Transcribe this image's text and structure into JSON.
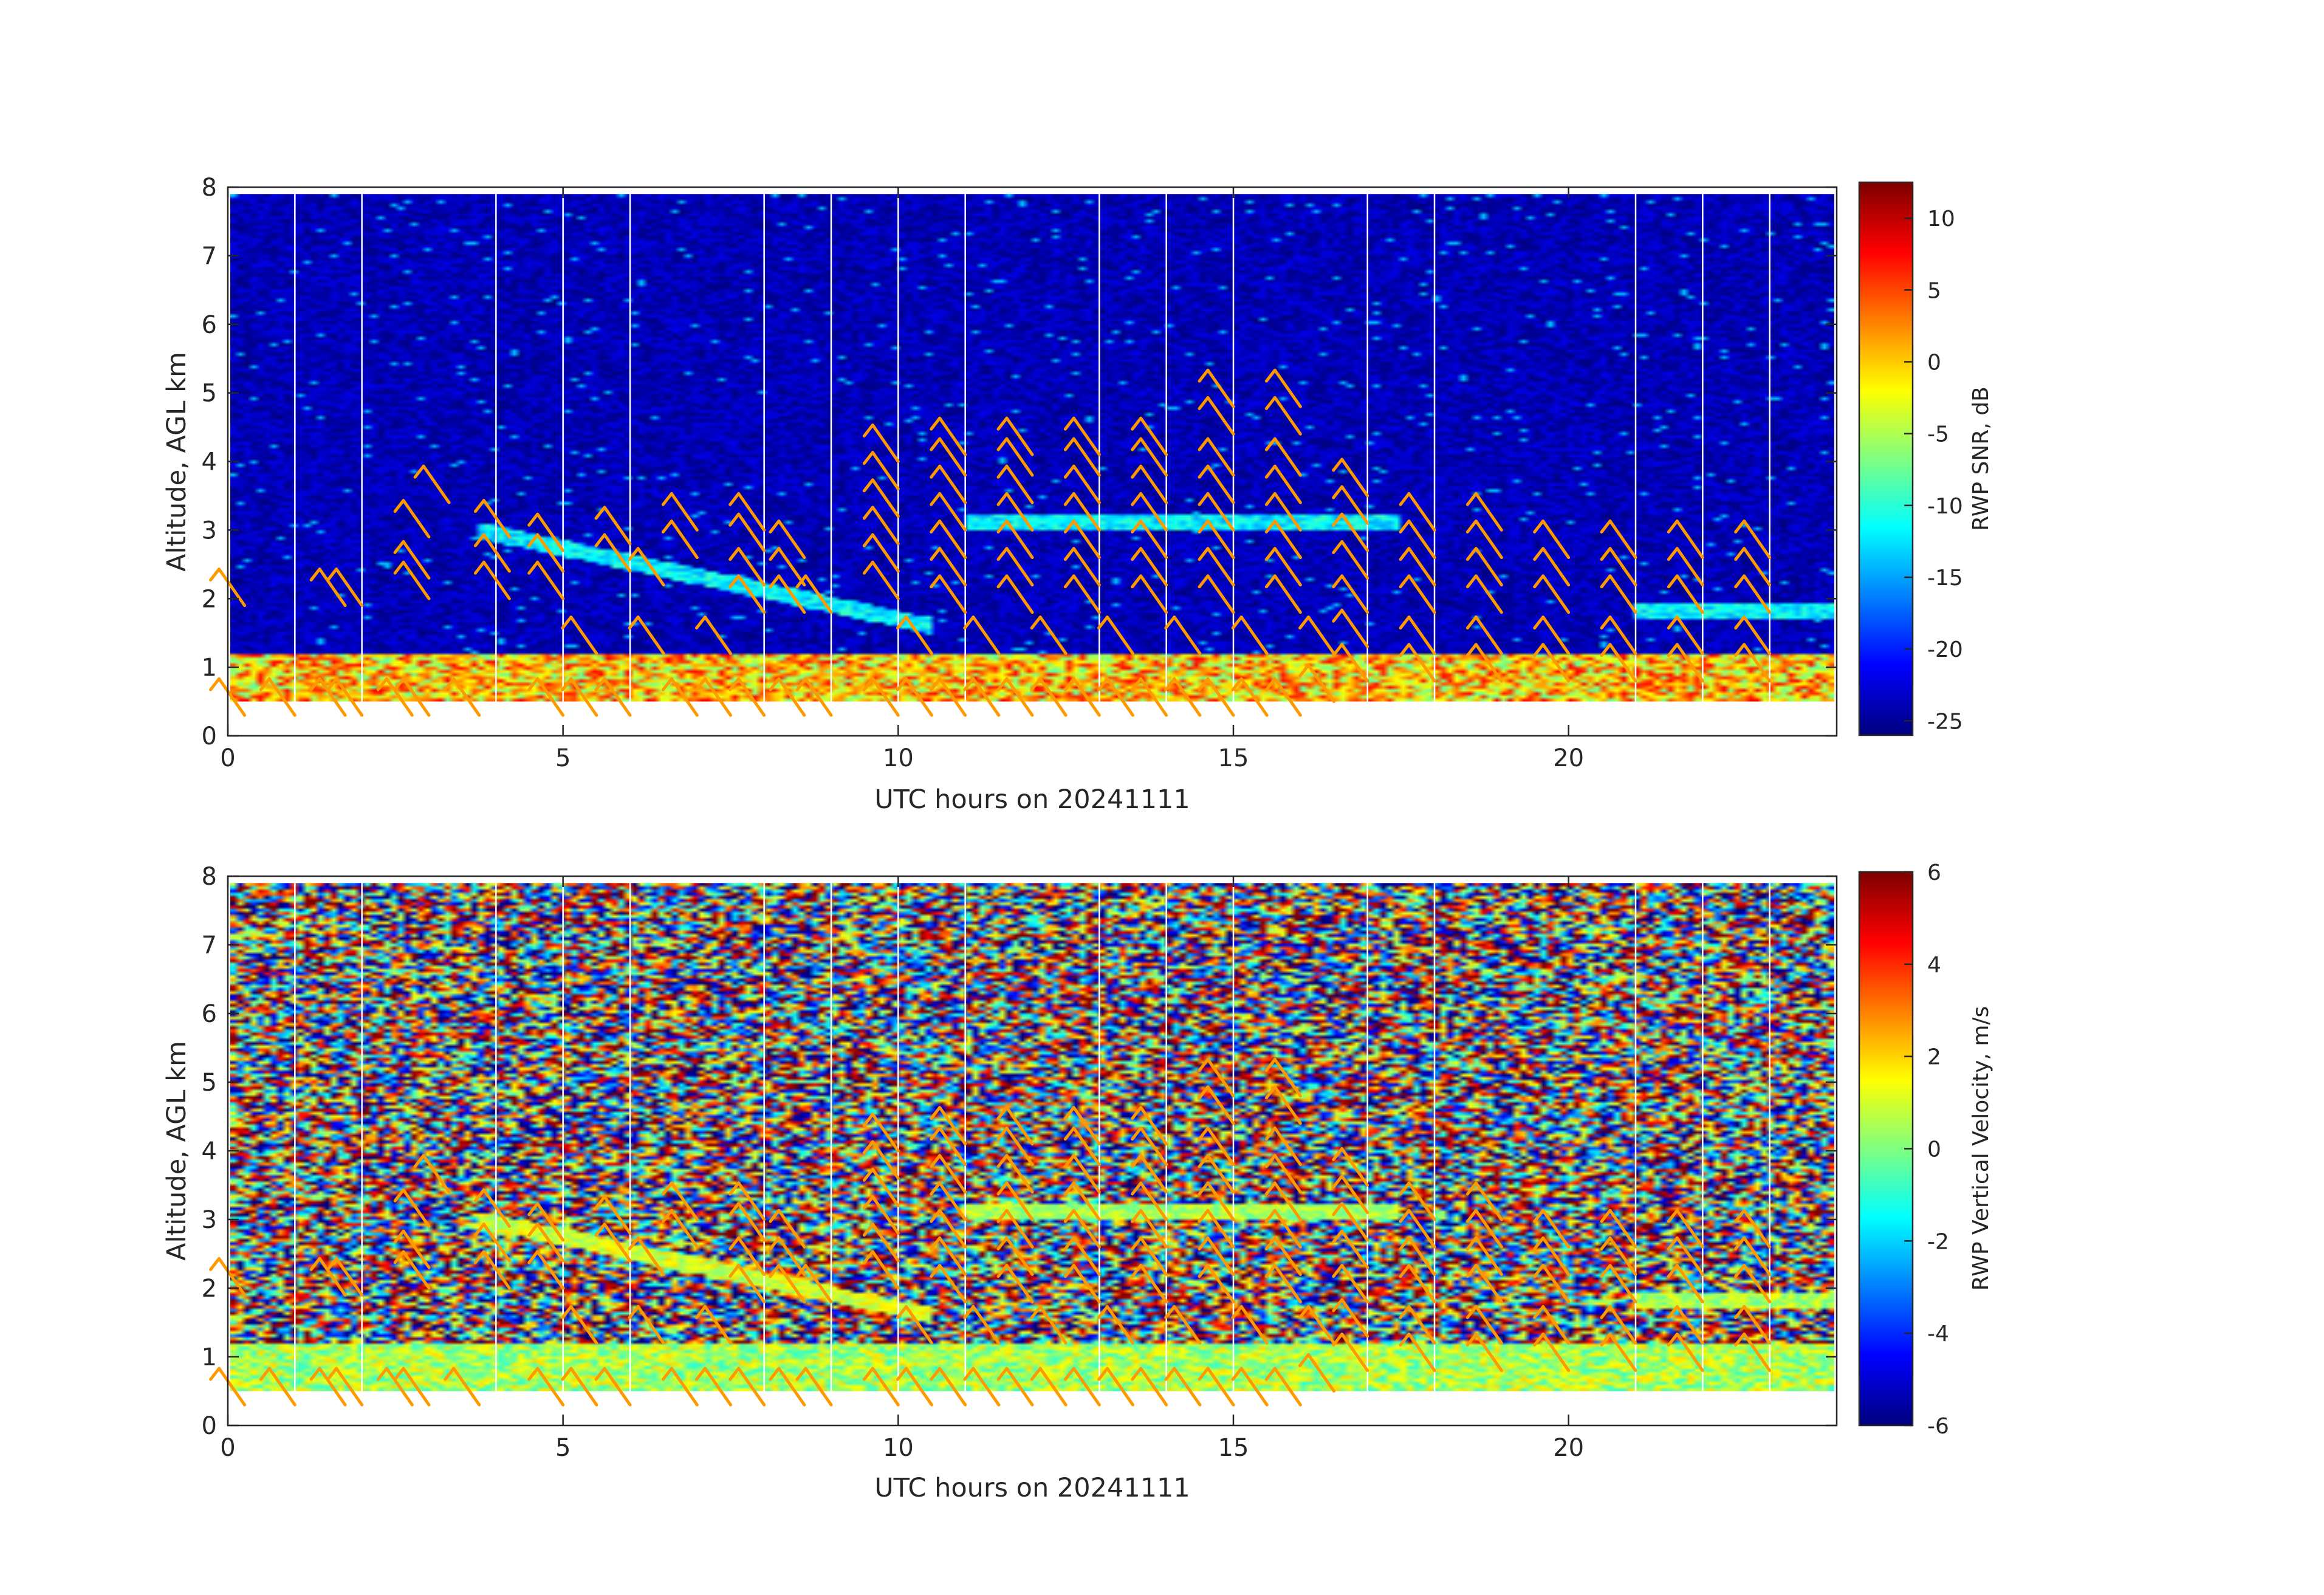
{
  "figure": {
    "background": "#ffffff",
    "barb_color": "#ff9900",
    "colormap": "jet"
  },
  "chart_data": [
    {
      "type": "heatmap",
      "name": "snr",
      "title": "",
      "xlabel": "UTC hours on 20241111",
      "ylabel": "Altitude, AGL km",
      "xlim": [
        0,
        24
      ],
      "ylim": [
        0,
        8
      ],
      "xticks": [
        0,
        5,
        10,
        15,
        20
      ],
      "yticks": [
        0,
        1,
        2,
        3,
        4,
        5,
        6,
        7,
        8
      ],
      "data_altitude_range_km": [
        0.5,
        7.9
      ],
      "profile_gap_hours": [
        1,
        2,
        4,
        5,
        6,
        8,
        9,
        10,
        11,
        13,
        14,
        15,
        17,
        18,
        21,
        22,
        23
      ],
      "colorbar": {
        "label": "RWP SNR, dB",
        "range": [
          -26,
          12.5
        ],
        "ticks": [
          10,
          5,
          0,
          -5,
          -10,
          -15,
          -20,
          -25
        ]
      },
      "features": [
        {
          "name": "boundary layer",
          "time_range": [
            0,
            24
          ],
          "altitude_km": [
            0.5,
            1.2
          ],
          "value_db": 0
        },
        {
          "name": "elevated layer",
          "time_range": [
            3.7,
            10.5
          ],
          "altitude_km": [
            3.0,
            1.6
          ],
          "value_db": -12
        },
        {
          "name": "elevated layer",
          "time_range": [
            11,
            17.5
          ],
          "altitude_km": [
            3.1,
            3.1
          ],
          "value_db": -12
        },
        {
          "name": "elevated layer",
          "time_range": [
            21,
            24
          ],
          "altitude_km": [
            1.8,
            1.8
          ],
          "value_db": -12
        }
      ]
    },
    {
      "type": "heatmap",
      "name": "vertical-velocity",
      "title": "",
      "xlabel": "UTC hours on 20241111",
      "ylabel": "Altitude, AGL km",
      "xlim": [
        0,
        24
      ],
      "ylim": [
        0,
        8
      ],
      "xticks": [
        0,
        5,
        10,
        15,
        20
      ],
      "yticks": [
        0,
        1,
        2,
        3,
        4,
        5,
        6,
        7,
        8
      ],
      "data_altitude_range_km": [
        0.5,
        7.9
      ],
      "profile_gap_hours": [
        1,
        2,
        4,
        5,
        6,
        8,
        9,
        10,
        11,
        13,
        14,
        15,
        17,
        18,
        21,
        22,
        23
      ],
      "colorbar": {
        "label": "RWP Vertical Velocity, m/s",
        "range": [
          -6,
          6
        ],
        "ticks": [
          6,
          4,
          2,
          0,
          -2,
          -4,
          -6
        ]
      },
      "features": [
        {
          "name": "boundary layer",
          "time_range": [
            0,
            24
          ],
          "altitude_km": [
            0.5,
            1.2
          ],
          "value_ms": 0.5
        },
        {
          "name": "elevated layer",
          "time_range": [
            3.7,
            10.5
          ],
          "altitude_km": [
            3.0,
            1.6
          ],
          "value_ms": 1
        },
        {
          "name": "elevated layer",
          "time_range": [
            11,
            17.5
          ],
          "altitude_km": [
            3.1,
            3.1
          ],
          "value_ms": 0.5
        },
        {
          "name": "elevated layer",
          "time_range": [
            21,
            24
          ],
          "altitude_km": [
            1.8,
            1.8
          ],
          "value_ms": 0.5
        }
      ]
    }
  ],
  "wind_barbs": [
    {
      "t": 0.25,
      "alts": [
        0.3,
        1.9
      ]
    },
    {
      "t": 1.0,
      "alts": [
        0.3
      ]
    },
    {
      "t": 1.75,
      "alts": [
        0.3,
        1.9
      ]
    },
    {
      "t": 2.0,
      "alts": [
        0.3,
        1.9
      ]
    },
    {
      "t": 2.75,
      "alts": [
        0.3
      ]
    },
    {
      "t": 3.0,
      "alts": [
        0.3,
        2.0,
        2.3,
        2.9
      ]
    },
    {
      "t": 3.3,
      "alts": [
        3.4
      ]
    },
    {
      "t": 3.75,
      "alts": [
        0.3
      ]
    },
    {
      "t": 4.2,
      "alts": [
        2.0,
        2.4,
        2.9
      ]
    },
    {
      "t": 5.0,
      "alts": [
        0.3,
        2.0,
        2.4,
        2.7
      ]
    },
    {
      "t": 5.5,
      "alts": [
        0.3,
        1.2
      ]
    },
    {
      "t": 6.0,
      "alts": [
        0.3,
        2.4,
        2.8
      ]
    },
    {
      "t": 6.5,
      "alts": [
        1.2,
        2.2
      ]
    },
    {
      "t": 7.0,
      "alts": [
        0.3,
        2.6,
        3.0
      ]
    },
    {
      "t": 7.5,
      "alts": [
        0.3,
        1.2
      ]
    },
    {
      "t": 8.0,
      "alts": [
        0.3,
        1.8,
        2.2,
        2.7,
        3.0
      ]
    },
    {
      "t": 8.6,
      "alts": [
        0.3,
        1.8,
        2.2,
        2.6
      ]
    },
    {
      "t": 9.0,
      "alts": [
        0.3,
        1.8
      ]
    },
    {
      "t": 10.0,
      "alts": [
        0.3,
        2.0,
        2.4,
        2.8,
        3.2,
        3.6,
        4.0
      ]
    },
    {
      "t": 10.5,
      "alts": [
        0.3,
        1.2
      ]
    },
    {
      "t": 11.0,
      "alts": [
        0.3,
        1.8,
        2.2,
        2.6,
        3.0,
        3.4,
        3.8,
        4.1
      ]
    },
    {
      "t": 11.5,
      "alts": [
        0.3,
        1.2
      ]
    },
    {
      "t": 12.0,
      "alts": [
        0.3,
        1.8,
        2.2,
        2.6,
        3.0,
        3.4,
        3.8,
        4.1
      ]
    },
    {
      "t": 12.5,
      "alts": [
        0.3,
        1.2
      ]
    },
    {
      "t": 13.0,
      "alts": [
        0.3,
        1.8,
        2.2,
        2.6,
        3.0,
        3.4,
        3.8,
        4.1
      ]
    },
    {
      "t": 13.5,
      "alts": [
        0.3,
        1.2
      ]
    },
    {
      "t": 14.0,
      "alts": [
        0.3,
        1.8,
        2.2,
        2.6,
        3.0,
        3.4,
        3.8,
        4.1
      ]
    },
    {
      "t": 14.5,
      "alts": [
        0.3,
        1.2
      ]
    },
    {
      "t": 15.0,
      "alts": [
        0.3,
        1.8,
        2.2,
        2.6,
        3.0,
        3.4,
        3.8,
        4.4,
        4.8
      ]
    },
    {
      "t": 15.5,
      "alts": [
        0.3,
        1.2
      ]
    },
    {
      "t": 16.0,
      "alts": [
        0.3,
        1.8,
        2.2,
        2.6,
        3.0,
        3.4,
        3.8,
        4.4,
        4.8
      ]
    },
    {
      "t": 16.5,
      "alts": [
        0.5,
        1.2
      ]
    },
    {
      "t": 17.0,
      "alts": [
        0.8,
        1.3,
        1.8,
        2.3,
        2.7,
        3.1,
        3.5
      ]
    },
    {
      "t": 18.0,
      "alts": [
        0.8,
        1.2,
        1.8,
        2.2,
        2.6,
        3.0
      ]
    },
    {
      "t": 19.0,
      "alts": [
        0.8,
        1.2,
        1.8,
        2.2,
        2.6,
        3.0
      ]
    },
    {
      "t": 20.0,
      "alts": [
        0.8,
        1.2,
        1.8,
        2.2,
        2.6
      ]
    },
    {
      "t": 21.0,
      "alts": [
        0.8,
        1.2,
        1.8,
        2.2,
        2.6
      ]
    },
    {
      "t": 22.0,
      "alts": [
        0.8,
        1.2,
        1.8,
        2.2,
        2.6
      ]
    },
    {
      "t": 23.0,
      "alts": [
        0.8,
        1.2,
        1.8,
        2.2,
        2.6
      ]
    }
  ]
}
